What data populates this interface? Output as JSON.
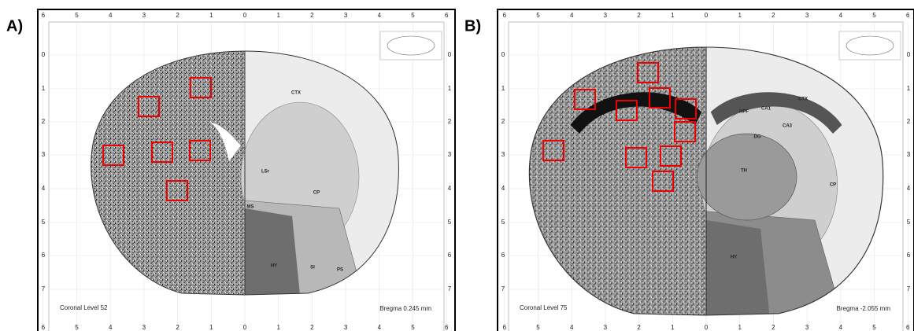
{
  "panels": [
    {
      "label": "A)",
      "x_ticks": [
        "6",
        "5",
        "4",
        "3",
        "2",
        "1",
        "0",
        "1",
        "2",
        "3",
        "4",
        "5",
        "6"
      ],
      "y_ticks": [
        "0",
        "1",
        "2",
        "3",
        "4",
        "5",
        "6",
        "7"
      ],
      "caption": "Coronal Level 52",
      "bregma": "Bregma 0.245 mm",
      "regions": [
        "CTX",
        "CP",
        "LSr",
        "HY",
        "PS",
        "SI",
        "MS"
      ]
    },
    {
      "label": "B)",
      "x_ticks": [
        "6",
        "5",
        "4",
        "3",
        "2",
        "1",
        "0",
        "1",
        "2",
        "3",
        "4",
        "5",
        "6"
      ],
      "y_ticks": [
        "0",
        "1",
        "2",
        "3",
        "4",
        "5",
        "6",
        "7"
      ],
      "caption": "Coronal Level 75",
      "bregma": "Bregma -2.055 mm",
      "regions": [
        "CTX",
        "HPF",
        "CA1",
        "CA3",
        "DG",
        "TH",
        "HY",
        "CP"
      ]
    }
  ]
}
